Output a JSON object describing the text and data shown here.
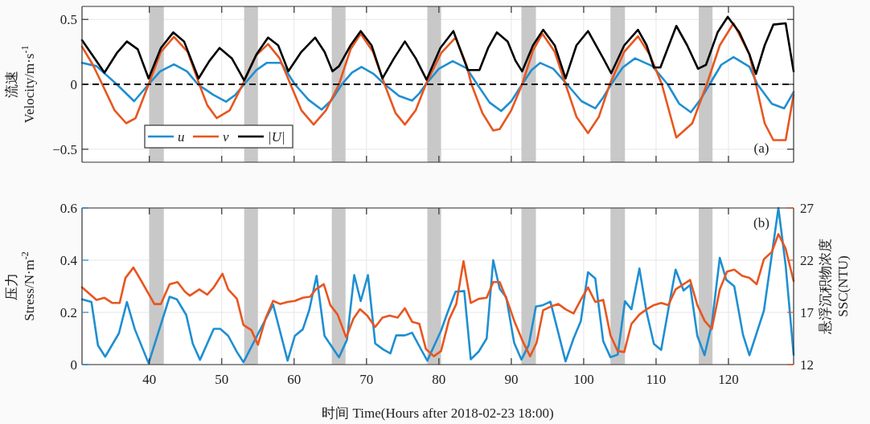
{
  "chart_data": [
    {
      "type": "line",
      "ylabel": "流速\nVelocity/m·s$^{-1}$",
      "xlim": [
        30.7,
        129
      ],
      "xticks": [
        40,
        50,
        60,
        70,
        80,
        90,
        100,
        110,
        120
      ],
      "ylim": [
        -0.6,
        0.6
      ],
      "yticks": [
        -0.5,
        0,
        0.5
      ],
      "grid": true,
      "tick_labels": "y",
      "legend": "bottom left",
      "series": [
        {
          "name": "u",
          "color": "#1f8fd2",
          "x": [
            30.7,
            32.7,
            35.5,
            37.9,
            39.9,
            41.5,
            43.4,
            45.2,
            46.7,
            48.8,
            50.6,
            51.9,
            53.1,
            54.8,
            56.2,
            58.2,
            60.1,
            62.0,
            63.8,
            65.2,
            66.6,
            68.0,
            69.3,
            71.0,
            72.5,
            74.5,
            76.3,
            77.3,
            78.2,
            80.0,
            81.9,
            83.8,
            85.3,
            87.0,
            88.6,
            90.0,
            91.5,
            92.8,
            94.0,
            95.8,
            97.7,
            99.7,
            101.6,
            102.7,
            103.8,
            105.4,
            107.1,
            109.5,
            111.6,
            113.2,
            114.8,
            116.1,
            117.4,
            119.0,
            120.7,
            122.9,
            124.0,
            126.0,
            127.7,
            129.0
          ],
          "values": [
            0.165,
            0.14,
            0.0,
            -0.13,
            0.0,
            0.1,
            0.154,
            0.1,
            0.0,
            -0.08,
            -0.134,
            -0.08,
            0.0,
            0.11,
            0.165,
            0.165,
            0.0,
            -0.12,
            -0.195,
            -0.12,
            0.0,
            0.09,
            0.134,
            0.08,
            0.0,
            -0.09,
            -0.125,
            -0.07,
            0.0,
            0.12,
            0.179,
            0.125,
            0.0,
            -0.14,
            -0.206,
            -0.13,
            0.0,
            0.11,
            0.165,
            0.12,
            0.0,
            -0.13,
            -0.185,
            -0.1,
            0.0,
            0.13,
            0.2,
            0.14,
            0.0,
            -0.15,
            -0.215,
            -0.12,
            0.0,
            0.15,
            0.21,
            0.135,
            0.0,
            -0.15,
            -0.185,
            -0.06
          ]
        },
        {
          "name": "v",
          "color": "#e8561f",
          "x": [
            30.7,
            32.2,
            33.5,
            35.2,
            36.8,
            38.1,
            39.9,
            41.6,
            43.4,
            45.3,
            46.9,
            48.0,
            49.3,
            51.1,
            52.9,
            54.7,
            56.4,
            58.0,
            59.5,
            61.0,
            62.7,
            64.4,
            66.2,
            67.8,
            69.2,
            70.9,
            72.5,
            74.0,
            75.3,
            76.8,
            78.2,
            80.3,
            82.3,
            83.8,
            84.5,
            86.0,
            87.5,
            88.4,
            90.0,
            91.5,
            93.0,
            94.3,
            96.0,
            97.5,
            99.0,
            100.6,
            102.1,
            103.6,
            105.6,
            107.5,
            109.2,
            110.8,
            112.8,
            115.0,
            117.0,
            118.8,
            120.7,
            122.9,
            123.8,
            125.0,
            126.2,
            127.9,
            129.0
          ],
          "values": [
            0.29,
            0.15,
            0.0,
            -0.2,
            -0.3,
            -0.26,
            0.0,
            0.25,
            0.366,
            0.25,
            0.0,
            -0.16,
            -0.26,
            -0.2,
            0.0,
            0.22,
            0.31,
            0.2,
            0.0,
            -0.2,
            -0.31,
            -0.2,
            0.0,
            0.27,
            0.39,
            0.25,
            0.0,
            -0.22,
            -0.31,
            -0.2,
            0.0,
            0.24,
            0.36,
            0.15,
            0.0,
            -0.22,
            -0.356,
            -0.345,
            -0.2,
            0.0,
            0.26,
            0.39,
            0.25,
            0.0,
            -0.25,
            -0.376,
            -0.25,
            0.0,
            0.25,
            0.37,
            0.22,
            0.0,
            -0.41,
            -0.3,
            0.0,
            0.3,
            0.47,
            0.23,
            0.0,
            -0.3,
            -0.43,
            -0.43,
            -0.08
          ]
        },
        {
          "name": "|U|",
          "color": "#000000",
          "x": [
            30.7,
            32.2,
            33.8,
            35.5,
            36.9,
            38.4,
            39.9,
            41.6,
            43.3,
            44.8,
            46.8,
            48.3,
            49.7,
            51.4,
            53.1,
            54.8,
            56.4,
            57.8,
            59.2,
            61.0,
            62.9,
            64.2,
            65.3,
            66.2,
            67.8,
            69.2,
            70.7,
            72.2,
            73.8,
            75.3,
            76.8,
            78.3,
            80.2,
            82.0,
            84.0,
            85.6,
            86.8,
            88.0,
            89.5,
            90.6,
            91.5,
            93.0,
            94.4,
            96.0,
            97.5,
            99.0,
            100.6,
            102.7,
            103.8,
            105.6,
            107.5,
            108.7,
            109.7,
            110.6,
            112.8,
            114.3,
            115.8,
            116.9,
            118.5,
            119.9,
            121.5,
            122.9,
            123.8,
            125.0,
            126.2,
            127.9,
            129.0
          ],
          "values": [
            0.34,
            0.22,
            0.09,
            0.24,
            0.33,
            0.27,
            0.045,
            0.28,
            0.4,
            0.33,
            0.045,
            0.18,
            0.28,
            0.2,
            0.03,
            0.23,
            0.36,
            0.3,
            0.1,
            0.25,
            0.36,
            0.25,
            0.1,
            0.14,
            0.3,
            0.41,
            0.3,
            0.045,
            0.2,
            0.33,
            0.2,
            0.035,
            0.28,
            0.41,
            0.11,
            0.11,
            0.28,
            0.4,
            0.33,
            0.18,
            0.1,
            0.3,
            0.42,
            0.3,
            0.045,
            0.3,
            0.41,
            0.2,
            0.085,
            0.3,
            0.42,
            0.3,
            0.13,
            0.13,
            0.45,
            0.3,
            0.12,
            0.15,
            0.4,
            0.52,
            0.4,
            0.23,
            0.08,
            0.3,
            0.46,
            0.47,
            0.1
          ]
        }
      ],
      "ref_lines": [
        {
          "axis": "y",
          "value": 0,
          "color": "#000000",
          "line_style": "dashed"
        }
      ],
      "bands": [
        {
          "axis": "x",
          "from": 40,
          "to": 42,
          "color": "#c8c8c8"
        },
        {
          "axis": "x",
          "from": 53.1,
          "to": 55,
          "color": "#c8c8c8"
        },
        {
          "axis": "x",
          "from": 65.2,
          "to": 67.1,
          "color": "#c8c8c8"
        },
        {
          "axis": "x",
          "from": 78.4,
          "to": 80.3,
          "color": "#c8c8c8"
        },
        {
          "axis": "x",
          "from": 91.4,
          "to": 93.4,
          "color": "#c8c8c8"
        },
        {
          "axis": "x",
          "from": 103.7,
          "to": 105.7,
          "color": "#c8c8c8"
        },
        {
          "axis": "x",
          "from": 115.9,
          "to": 117.8,
          "color": "#c8c8c8"
        }
      ],
      "annotations": [
        "(a)"
      ]
    },
    {
      "type": "line",
      "xlabel": "时间 Time(Hours after 2018-02-23 18:00)",
      "ylabel": "压力\nStress/N·m$^{-2}$",
      "y2label": "悬浮沉积物浓度\nSSC(NTU)",
      "xlim": [
        30.7,
        129
      ],
      "xticks": [
        40,
        50,
        60,
        70,
        80,
        90,
        100,
        110,
        120
      ],
      "ylim": [
        0,
        0.6
      ],
      "yticks": [
        0,
        0.2,
        0.4,
        0.6
      ],
      "y2lim": [
        12,
        27
      ],
      "y2ticks": [
        12,
        17,
        22,
        27
      ],
      "grid": true,
      "series": [
        {
          "color": "#1f8fd2",
          "x": [
            30.7,
            32.0,
            32.9,
            33.9,
            35.8,
            36.9,
            38.0,
            39.9,
            42.8,
            43.8,
            45.1,
            46.0,
            47.0,
            48.9,
            49.8,
            50.9,
            52.1,
            53.0,
            57.1,
            59.1,
            60.1,
            61.2,
            62.1,
            63.1,
            64.2,
            66.2,
            67.3,
            68.3,
            69.2,
            70.2,
            71.2,
            72.3,
            73.3,
            74.1,
            75.3,
            76.3,
            77.5,
            78.4,
            80.3,
            81.2,
            82.3,
            83.5,
            84.4,
            85.5,
            86.6,
            87.5,
            88.4,
            89.3,
            90.4,
            91.4,
            92.4,
            93.4,
            94.4,
            95.4,
            96.4,
            97.5,
            98.6,
            99.6,
            100.6,
            101.6,
            102.7,
            103.7,
            104.7,
            105.7,
            106.6,
            107.7,
            108.7,
            109.7,
            110.7,
            111.7,
            112.7,
            113.8,
            114.7,
            115.7,
            116.7,
            117.7,
            118.8,
            119.7,
            120.8,
            122.0,
            122.9,
            124.9,
            126.0,
            126.9,
            127.9,
            129.0
          ],
          "values": [
            0.25,
            0.24,
            0.074,
            0.03,
            0.12,
            0.24,
            0.135,
            0.005,
            0.26,
            0.25,
            0.19,
            0.08,
            0.018,
            0.137,
            0.137,
            0.11,
            0.048,
            0.009,
            0.23,
            0.015,
            0.11,
            0.135,
            0.21,
            0.34,
            0.11,
            0.028,
            0.095,
            0.343,
            0.243,
            0.343,
            0.081,
            0.058,
            0.043,
            0.112,
            0.112,
            0.122,
            0.06,
            0.015,
            0.13,
            0.2,
            0.279,
            0.282,
            0.02,
            0.05,
            0.1,
            0.4,
            0.29,
            0.258,
            0.083,
            0.019,
            0.074,
            0.222,
            0.228,
            0.241,
            0.132,
            0.012,
            0.1,
            0.166,
            0.354,
            0.33,
            0.089,
            0.028,
            0.038,
            0.243,
            0.212,
            0.368,
            0.2,
            0.079,
            0.056,
            0.212,
            0.364,
            0.284,
            0.305,
            0.11,
            0.036,
            0.156,
            0.409,
            0.325,
            0.3,
            0.115,
            0.036,
            0.207,
            0.423,
            0.6,
            0.38,
            0.038
          ]
        },
        {
          "color": "#e8561f",
          "axis": "y2",
          "x": [
            30.7,
            32.7,
            33.8,
            34.9,
            35.9,
            36.7,
            37.8,
            38.9,
            40.7,
            41.6,
            42.8,
            43.9,
            44.9,
            45.6,
            46.9,
            48.0,
            48.9,
            50.1,
            50.9,
            52.1,
            53.0,
            54.1,
            55.0,
            56.1,
            57.1,
            58.1,
            59.1,
            60.1,
            61.2,
            62.2,
            63.0,
            64.1,
            65.0,
            66.0,
            67.2,
            68.2,
            69.1,
            70.1,
            71.2,
            72.2,
            73.2,
            74.3,
            75.3,
            76.3,
            77.3,
            78.2,
            79.3,
            80.3,
            81.4,
            82.4,
            83.4,
            84.4,
            85.5,
            86.6,
            87.5,
            88.4,
            89.5,
            90.4,
            91.6,
            92.6,
            93.5,
            94.4,
            95.6,
            96.5,
            97.5,
            98.6,
            99.6,
            100.6,
            101.6,
            102.7,
            103.7,
            104.7,
            105.6,
            106.6,
            107.7,
            108.7,
            109.7,
            110.7,
            111.7,
            112.7,
            113.8,
            114.7,
            115.7,
            116.7,
            117.7,
            118.8,
            119.8,
            120.8,
            121.9,
            122.9,
            123.9,
            124.9,
            126.0,
            126.9,
            127.9,
            129.0
          ],
          "values": [
            19.4,
            18.2,
            18.4,
            17.9,
            17.9,
            20.3,
            21.3,
            20.0,
            17.8,
            17.8,
            19.7,
            19.9,
            19.0,
            18.6,
            19.2,
            18.7,
            19.4,
            20.7,
            19.2,
            18.3,
            15.8,
            15.3,
            13.9,
            16.5,
            18.1,
            17.8,
            18.0,
            18.1,
            18.4,
            18.5,
            19.2,
            19.7,
            17.7,
            16.8,
            14.6,
            16.4,
            17.3,
            16.7,
            15.6,
            16.5,
            16.7,
            16.5,
            17.4,
            16.1,
            15.9,
            13.5,
            12.8,
            13.3,
            16.3,
            17.8,
            21.9,
            17.9,
            18.3,
            18.4,
            19.9,
            19.9,
            18.0,
            16.2,
            14.2,
            12.8,
            14.1,
            17.2,
            17.6,
            17.8,
            17.3,
            16.9,
            18.2,
            19.4,
            18.0,
            18.2,
            14.8,
            13.3,
            13.2,
            15.9,
            16.8,
            17.3,
            17.7,
            17.9,
            17.7,
            19.2,
            19.7,
            20.1,
            17.7,
            16.2,
            15.4,
            19.2,
            20.9,
            21.1,
            20.5,
            20.3,
            19.7,
            22.1,
            22.8,
            24.5,
            23.1,
            20.0
          ]
        }
      ],
      "bands": [
        {
          "axis": "x",
          "from": 40,
          "to": 42,
          "color": "#c8c8c8"
        },
        {
          "axis": "x",
          "from": 53.1,
          "to": 55,
          "color": "#c8c8c8"
        },
        {
          "axis": "x",
          "from": 65.2,
          "to": 67.1,
          "color": "#c8c8c8"
        },
        {
          "axis": "x",
          "from": 78.4,
          "to": 80.3,
          "color": "#c8c8c8"
        },
        {
          "axis": "x",
          "from": 91.4,
          "to": 93.4,
          "color": "#c8c8c8"
        },
        {
          "axis": "x",
          "from": 103.7,
          "to": 105.7,
          "color": "#c8c8c8"
        },
        {
          "axis": "x",
          "from": 115.9,
          "to": 117.8,
          "color": "#c8c8c8"
        }
      ],
      "annotations": [
        "(b)"
      ]
    }
  ]
}
